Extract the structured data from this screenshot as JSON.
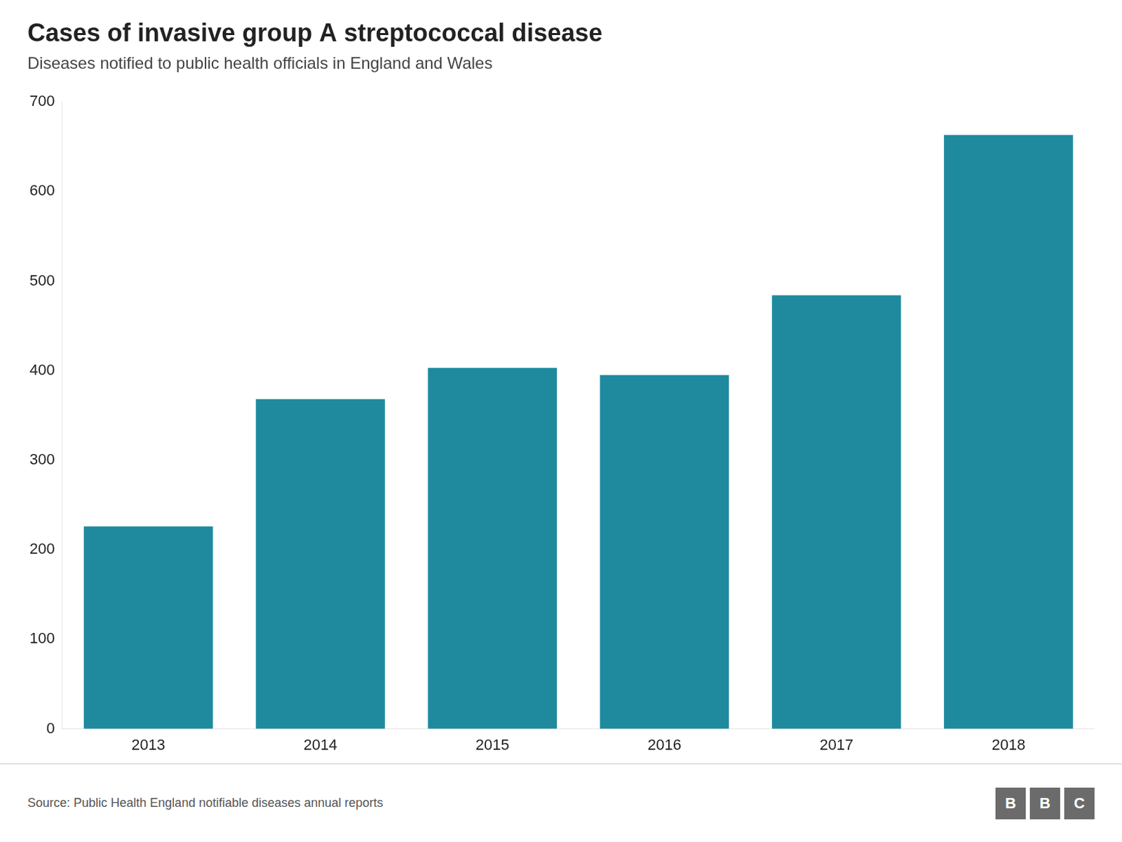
{
  "chart_data": {
    "type": "bar",
    "title": "Cases of invasive group A streptococcal disease",
    "subtitle": "Diseases notified to public health officials in England and Wales",
    "source": "Source: Public Health England notifiable diseases annual reports",
    "logo": "BBC",
    "categories": [
      "2013",
      "2014",
      "2015",
      "2016",
      "2017",
      "2018"
    ],
    "values": [
      226,
      368,
      403,
      395,
      484,
      663
    ],
    "color": "#1f8a9e",
    "ylim": [
      0,
      700
    ],
    "yticks": [
      0,
      100,
      200,
      300,
      400,
      500,
      600,
      700
    ],
    "grid": false
  }
}
